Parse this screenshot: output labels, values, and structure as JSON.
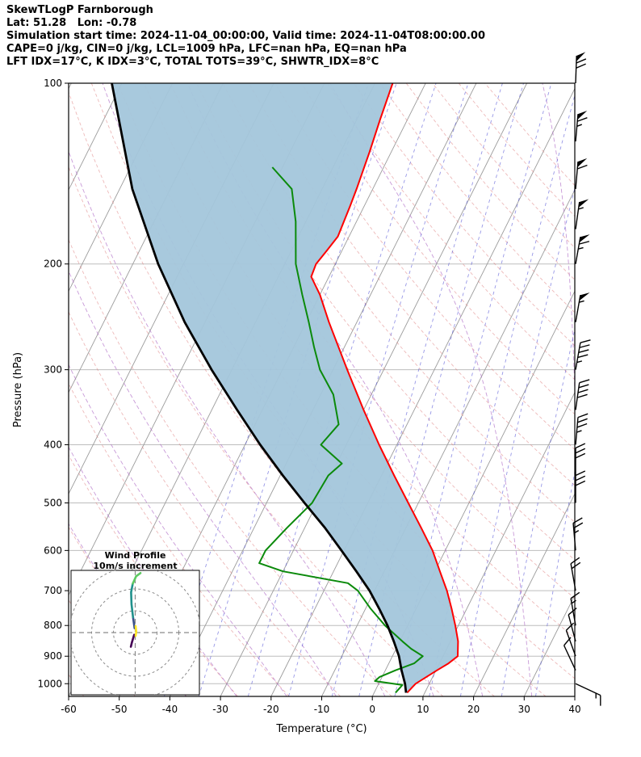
{
  "header": {
    "title": "SkewTLogP Farnborough",
    "location": "Lat: 51.28   Lon: -0.78",
    "times": "Simulation start time: 2024-11-04_00:00:00, Valid time: 2024-11-04T08:00:00.00",
    "indices_line1": "CAPE=0 j/kg, CIN=0 j/kg, LCL=1009 hPa, LFC=nan hPa, EQ=nan hPa",
    "indices_line2": "LFT IDX=17°C, K IDX=3°C, TOTAL TOTS=39°C, SHWTR_IDX=8°C"
  },
  "chart_data": {
    "type": "line",
    "variant": "skewT-logP",
    "title": "SkewTLogP Farnborough",
    "xlabel": "Temperature (°C)",
    "ylabel": "Pressure (hPa)",
    "xlim": [
      -60,
      40
    ],
    "ylim": [
      1050,
      100
    ],
    "p_top": 100,
    "p_bottom": 1050,
    "skew": 0.5,
    "grid": true,
    "x_ticks": [
      -60,
      -50,
      -40,
      -30,
      -20,
      -10,
      0,
      10,
      20,
      30,
      40
    ],
    "y_ticks": [
      100,
      200,
      300,
      400,
      500,
      600,
      700,
      800,
      900,
      1000
    ],
    "background_lines": {
      "isotherms_c": {
        "start": -120,
        "end": 40,
        "step": 10
      },
      "dry_adiabats_c": {
        "start": -60,
        "end": 180,
        "step": 10
      },
      "moist_adiabats_c": {
        "start": -40,
        "end": 40,
        "step": 10
      },
      "mixing_ratio_g_kg": [
        0.1,
        0.2,
        0.5,
        1,
        2,
        3,
        5,
        8,
        12,
        20,
        30
      ]
    },
    "colors": {
      "temperature": "#ff0000",
      "dewpoint": "#0b8a0b",
      "parcel": "#000000",
      "shading": "#a3c6db",
      "isotherm": "#9b9b9b",
      "pressure_grid": "#bdbdbd",
      "dry_adiabat": "#df8080",
      "moist_adiabat": "#b06fc8",
      "mixing_ratio": "#5252d6",
      "barb": "#000000"
    },
    "series": [
      {
        "name": "temperature",
        "pressure": [
          1035,
          1000,
          950,
          925,
          900,
          850,
          800,
          750,
          700,
          650,
          600,
          550,
          500,
          450,
          400,
          350,
          300,
          250,
          225,
          210,
          200,
          190,
          180,
          160,
          150,
          130,
          115,
          100
        ],
        "values": [
          6.5,
          7.3,
          10.2,
          11.8,
          12.9,
          11.5,
          9.4,
          7.0,
          4.3,
          1.0,
          -2.5,
          -7.0,
          -12.0,
          -17.5,
          -23.5,
          -30.0,
          -37.2,
          -45.5,
          -50.0,
          -53.5,
          -53.8,
          -53.0,
          -52.2,
          -52.8,
          -53.2,
          -54.3,
          -55.4,
          -56.5
        ]
      },
      {
        "name": "dewpoint",
        "pressure": [
          1035,
          1005,
          990,
          975,
          950,
          925,
          900,
          875,
          850,
          800,
          750,
          700,
          680,
          650,
          630,
          600,
          550,
          500,
          450,
          430,
          400,
          370,
          330,
          300,
          275,
          250,
          225,
          200,
          170,
          150,
          138
        ],
        "values": [
          4.2,
          4.8,
          -1.0,
          -0.5,
          2.0,
          5.0,
          6.0,
          3.0,
          0.5,
          -4.5,
          -9.0,
          -13.3,
          -16.0,
          -30.0,
          -35.5,
          -35.5,
          -33.5,
          -31.0,
          -30.5,
          -29.0,
          -35.0,
          -33.5,
          -37.5,
          -42.6,
          -46.0,
          -49.5,
          -53.5,
          -57.8,
          -62.0,
          -66.0,
          -72.0
        ]
      },
      {
        "name": "parcel",
        "pressure": [
          1035,
          1000,
          950,
          900,
          850,
          800,
          750,
          700,
          650,
          600,
          550,
          500,
          450,
          400,
          350,
          300,
          250,
          200,
          150,
          100
        ],
        "values": [
          6.3,
          5.2,
          3.2,
          1.3,
          -1.2,
          -4.0,
          -7.3,
          -11.0,
          -15.5,
          -20.5,
          -26.0,
          -32.5,
          -39.5,
          -47.0,
          -55.0,
          -64.0,
          -74.0,
          -85.0,
          -97.5,
          -112.0
        ]
      }
    ],
    "shading": {
      "between": [
        "parcel",
        "temperature"
      ],
      "meaning": "parcel-environment area (CAPE=0)"
    },
    "wind_barbs": [
      {
        "p": 100,
        "dir": 2,
        "speed": 70
      },
      {
        "p": 125,
        "dir": 5,
        "speed": 65
      },
      {
        "p": 150,
        "dir": 5,
        "speed": 60
      },
      {
        "p": 175,
        "dir": 8,
        "speed": 55
      },
      {
        "p": 200,
        "dir": 10,
        "speed": 65
      },
      {
        "p": 250,
        "dir": 10,
        "speed": 55
      },
      {
        "p": 300,
        "dir": 10,
        "speed": 45
      },
      {
        "p": 350,
        "dir": 8,
        "speed": 40
      },
      {
        "p": 400,
        "dir": 5,
        "speed": 35
      },
      {
        "p": 450,
        "dir": 0,
        "speed": 30
      },
      {
        "p": 500,
        "dir": 0,
        "speed": 28
      },
      {
        "p": 600,
        "dir": 355,
        "speed": 25
      },
      {
        "p": 700,
        "dir": 350,
        "speed": 20
      },
      {
        "p": 800,
        "dir": 350,
        "speed": 15
      },
      {
        "p": 850,
        "dir": 345,
        "speed": 12
      },
      {
        "p": 900,
        "dir": 340,
        "speed": 10
      },
      {
        "p": 950,
        "dir": 335,
        "speed": 8
      },
      {
        "p": 1000,
        "dir": 115,
        "speed": 13
      }
    ],
    "hodograph": {
      "title": "Wind Profile",
      "subtitle": "10m/s increment",
      "ring_increment_ms": 10,
      "rings_ms": [
        10,
        20,
        30
      ],
      "segments": [
        {
          "color": "#440154",
          "points": [
            [
              -0.5,
              -1
            ],
            [
              -1.5,
              -4.5
            ],
            [
              -2.0,
              -6.5
            ]
          ]
        },
        {
          "color": "#3b528b",
          "points": [
            [
              -0.3,
              2
            ],
            [
              -1.0,
              7
            ]
          ]
        },
        {
          "color": "#21918c",
          "points": [
            [
              -1.0,
              7
            ],
            [
              -1.7,
              13
            ],
            [
              -1.9,
              18.5
            ],
            [
              -1.1,
              22.5
            ]
          ]
        },
        {
          "color": "#5ec962",
          "points": [
            [
              -1.1,
              22.5
            ],
            [
              0.4,
              25.8
            ],
            [
              2.4,
              27.3
            ]
          ]
        },
        {
          "color": "#fde725",
          "points": [
            [
              0.2,
              3
            ],
            [
              0.5,
              0.5
            ],
            [
              0.2,
              -1.5
            ]
          ]
        }
      ]
    }
  }
}
